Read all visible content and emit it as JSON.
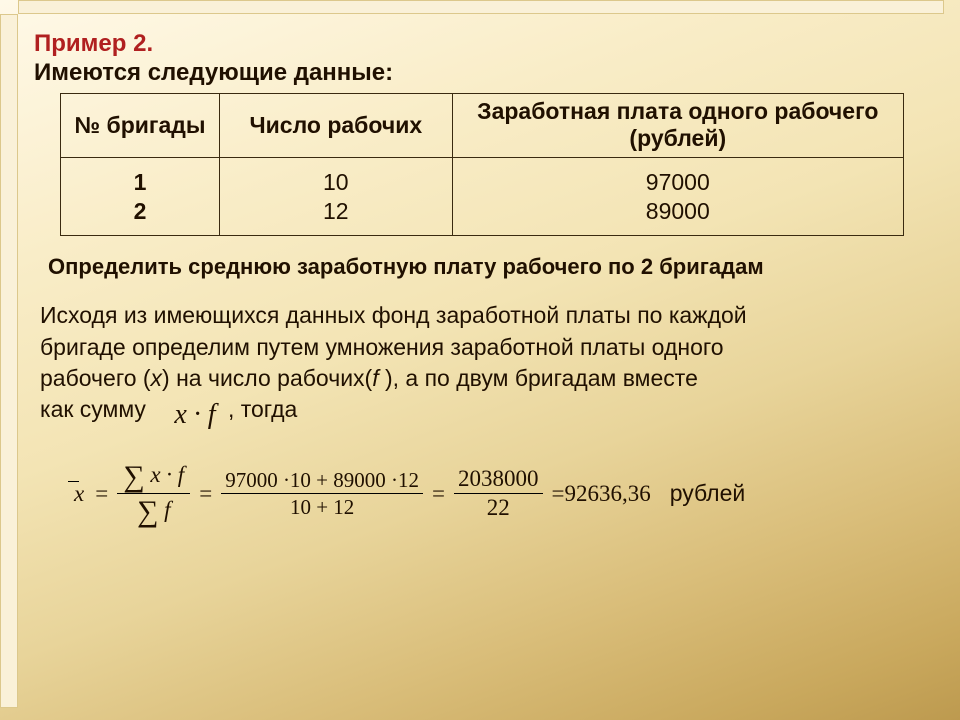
{
  "header": {
    "title": "Пример 2.",
    "subtitle": "Имеются следующие данные:"
  },
  "table": {
    "columns": {
      "brigade": "№ бригады",
      "workers": "Число рабочих",
      "wage": "Заработная плата одного рабочего (рублей)"
    },
    "rows": [
      {
        "brigade": "1",
        "workers": "10",
        "wage": "97000"
      },
      {
        "brigade": "2",
        "workers": "12",
        "wage": "89000"
      }
    ],
    "border_color": "#3a2a10",
    "font_size": 23
  },
  "task": "Определить среднюю заработную плату рабочего по 2 бригадам",
  "explain": {
    "l1": "Исходя из имеющихся данных фонд заработной платы по каждой",
    "l2": "бригаде определим путем умножения заработной платы одного",
    "l3_a": "рабочего (",
    "l3_x": "x",
    "l3_b": ") на число рабочих(",
    "l3_f": "f ",
    "l3_c": "), а по двум бригадам вместе",
    "l4": "как сумму",
    "xf": "x  · f",
    "tail": ", тогда"
  },
  "formula": {
    "xbar": "x",
    "sum_xf": "x  · f",
    "sum_f": "f",
    "step2_num": "97000  ·10 + 89000  ·12",
    "step2_den": "10 + 12",
    "step3_num": "2038000",
    "step3_den": "22",
    "result": "=92636,36",
    "unit": "рублей"
  },
  "colors": {
    "title": "#b02020",
    "text": "#201000",
    "bg_top": "#fff9e8",
    "bg_bottom": "#bd9a4f"
  }
}
